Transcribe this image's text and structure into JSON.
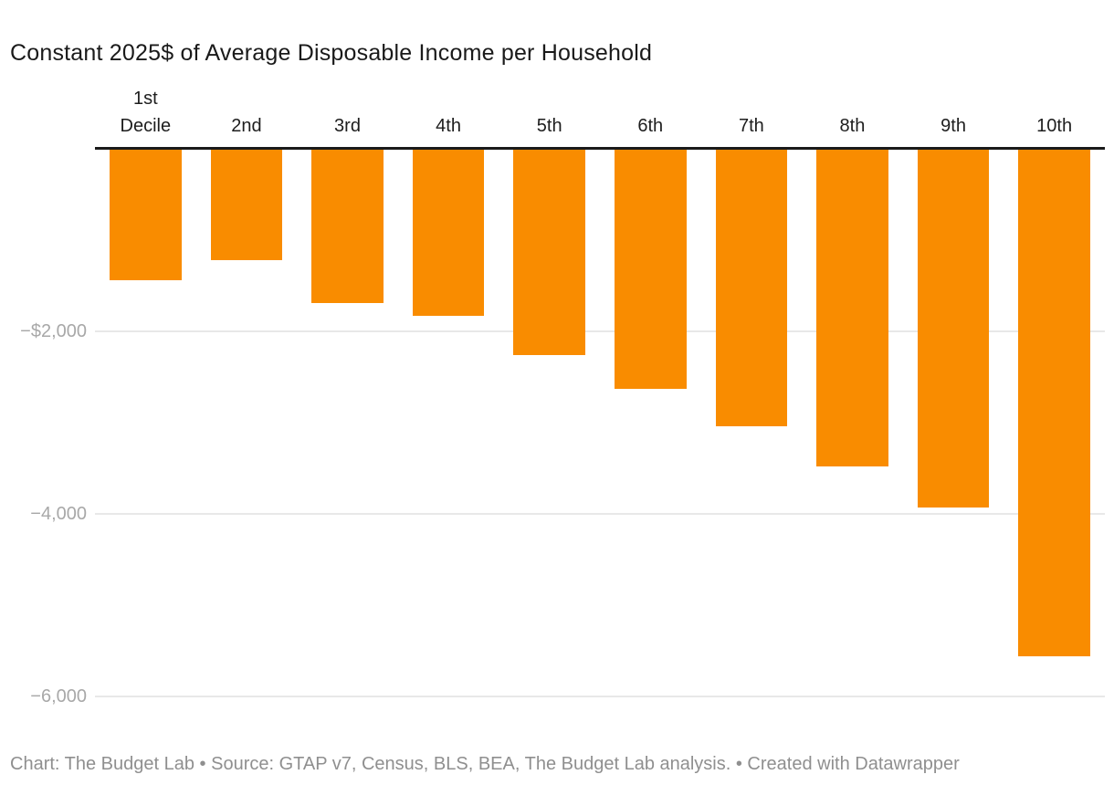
{
  "title": "Constant 2025$ of Average Disposable Income per Household",
  "footer": {
    "credit_text": "Chart: The Budget Lab • Source: GTAP v7, Census, BLS, BEA, The Budget Lab analysis. • ",
    "created_with": "Created with Datawrapper"
  },
  "chart_data": {
    "type": "bar",
    "title": "Constant 2025$ of Average Disposable Income per Household",
    "categories": [
      "1st Decile",
      "2nd",
      "3rd",
      "4th",
      "5th",
      "6th",
      "7th",
      "8th",
      "9th",
      "10th"
    ],
    "values": [
      -1440,
      -1220,
      -1690,
      -1830,
      -2260,
      -2630,
      -3040,
      -3480,
      -3930,
      -5560
    ],
    "xlabel": "",
    "ylabel": "",
    "ylim": [
      -6300,
      0
    ],
    "yticks": [
      {
        "label": "−$2,000",
        "value": -2000
      },
      {
        "label": "−4,000",
        "value": -4000
      },
      {
        "label": "−6,000",
        "value": -6000
      }
    ],
    "grid": true,
    "legend": "none",
    "bar_color": "#F98C00",
    "axis_line_color": "#1a1a1a",
    "gridline_color": "#e8e8e8",
    "tick_label_color": "#a8a8a8"
  }
}
